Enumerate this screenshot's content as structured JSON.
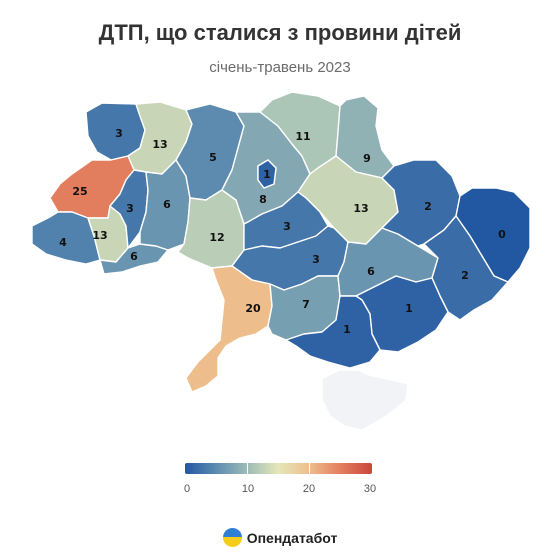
{
  "header": {
    "title": "ДТП, що сталися з провини дітей",
    "subtitle": "січень-травень 2023"
  },
  "legend": {
    "min": 0,
    "max": 30,
    "ticks": [
      "0",
      "10",
      "20",
      "30"
    ],
    "colors": [
      "#2258a2",
      "#5d8bb0",
      "#9dbcb6",
      "#e5e7b8",
      "#eebd8c",
      "#e27d5d",
      "#c9473c"
    ]
  },
  "regions": [
    {
      "name": "Volyn",
      "value": 3
    },
    {
      "name": "Rivne",
      "value": 13
    },
    {
      "name": "Lviv",
      "value": 25
    },
    {
      "name": "Zakarpattia",
      "value": 4
    },
    {
      "name": "Ivano-Frankivsk",
      "value": 13
    },
    {
      "name": "Ternopil",
      "value": 3
    },
    {
      "name": "Chernivtsi",
      "value": 6
    },
    {
      "name": "Khmelnytskyi",
      "value": 6
    },
    {
      "name": "Zhytomyr",
      "value": 5
    },
    {
      "name": "Vinnytsia",
      "value": 12
    },
    {
      "name": "Kyiv Oblast",
      "value": 8
    },
    {
      "name": "Kyiv City",
      "value": 1
    },
    {
      "name": "Chernihiv",
      "value": 11
    },
    {
      "name": "Sumy",
      "value": 9
    },
    {
      "name": "Poltava",
      "value": 13
    },
    {
      "name": "Cherkasy",
      "value": 3
    },
    {
      "name": "Kirovohrad",
      "value": 3
    },
    {
      "name": "Odesa",
      "value": 20
    },
    {
      "name": "Mykolaiv",
      "value": 7
    },
    {
      "name": "Dnipropetrovsk",
      "value": 6
    },
    {
      "name": "Kharkiv",
      "value": 2
    },
    {
      "name": "Luhansk",
      "value": 0
    },
    {
      "name": "Donetsk",
      "value": 2
    },
    {
      "name": "Zaporizhzhia",
      "value": 1
    },
    {
      "name": "Kherson",
      "value": 1
    },
    {
      "name": "Crimea",
      "value": null
    }
  ],
  "brand": {
    "name": "Опендатабот",
    "logo_colors": [
      "#2f7fd6",
      "#f6cc1a"
    ]
  },
  "nodata_color": "#f2f3f7"
}
